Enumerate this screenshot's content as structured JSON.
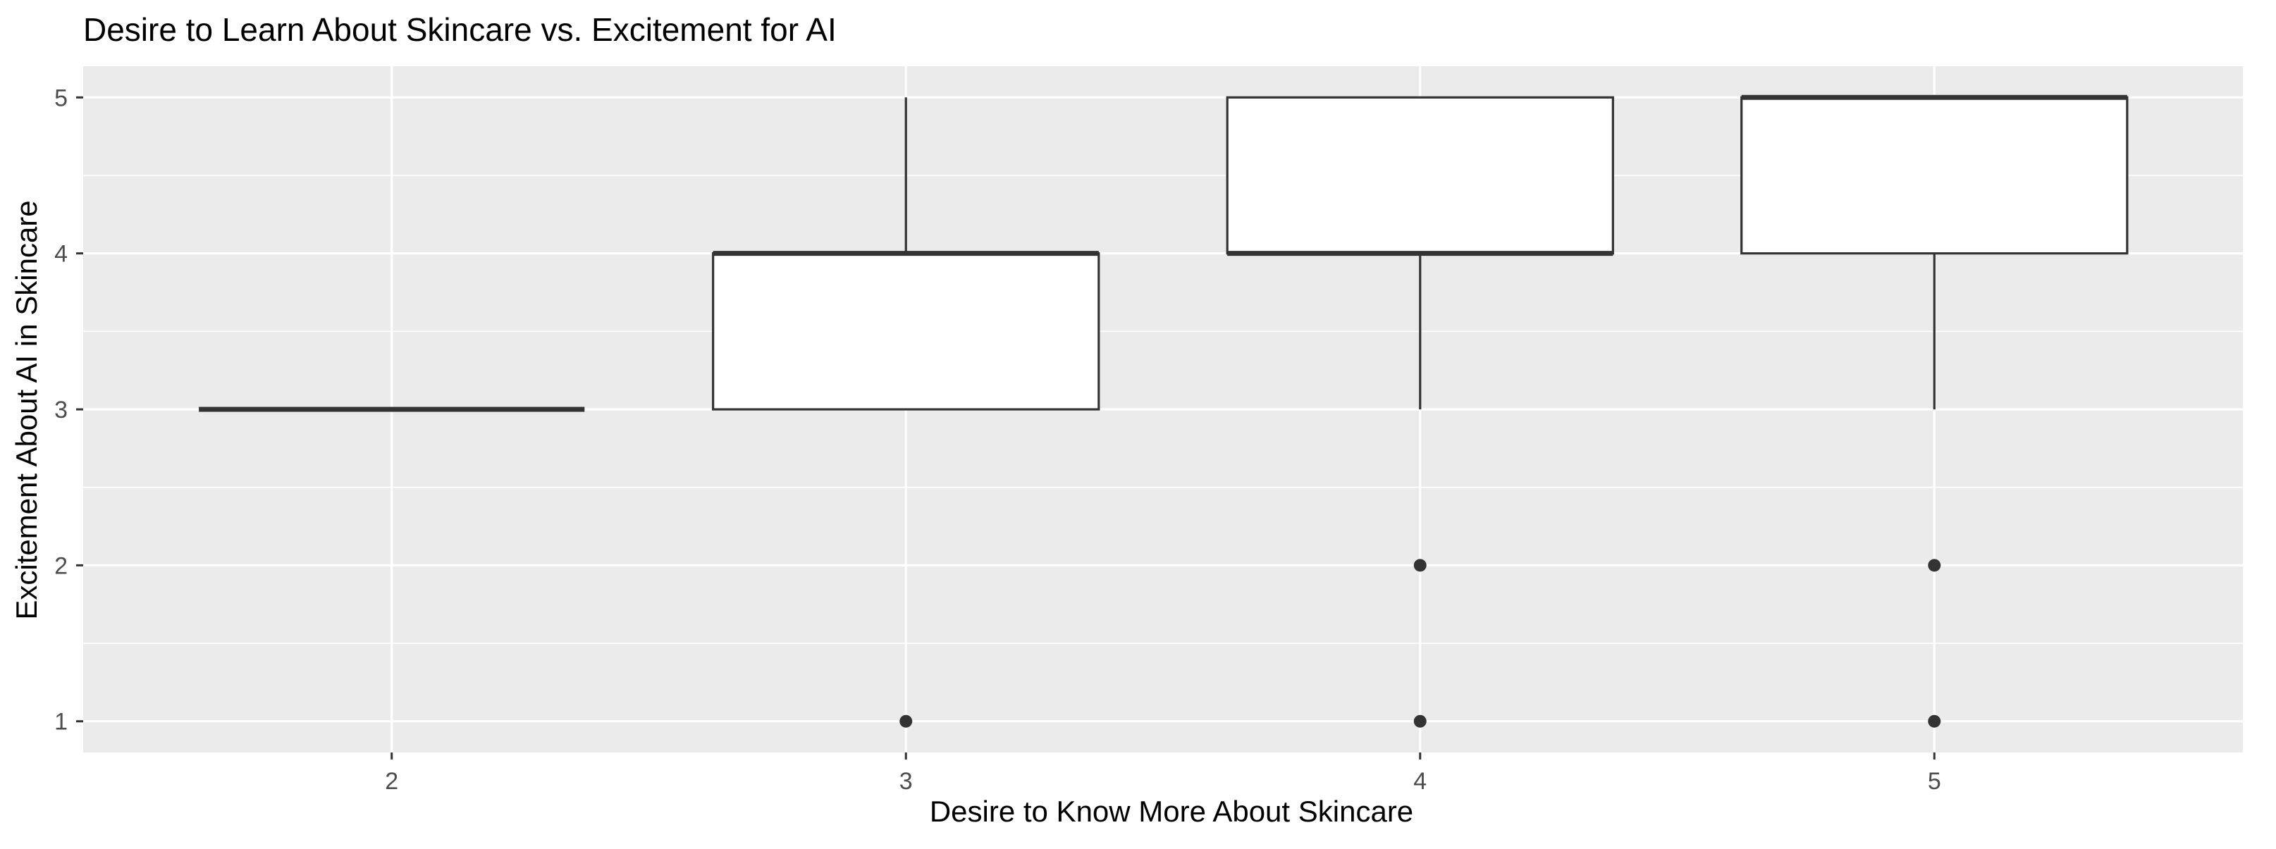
{
  "chart_data": {
    "type": "boxplot",
    "title": "Desire to Learn About Skincare vs. Excitement for AI",
    "xlabel": "Desire to Know More About Skincare",
    "ylabel": "Excitement About AI in Skincare",
    "categories": [
      "2",
      "3",
      "4",
      "5"
    ],
    "yticks": [
      1,
      2,
      3,
      4,
      5
    ],
    "ylim": [
      0.8,
      5.2
    ],
    "grid": true,
    "boxes": [
      {
        "category": "2",
        "min": 3,
        "q1": 3,
        "median": 3,
        "q3": 3,
        "max": 3,
        "outliers": []
      },
      {
        "category": "3",
        "min": 3,
        "q1": 3,
        "median": 4,
        "q3": 4,
        "max": 5,
        "outliers": [
          1
        ]
      },
      {
        "category": "4",
        "min": 3,
        "q1": 4,
        "median": 4,
        "q3": 5,
        "max": 5,
        "outliers": [
          1,
          2
        ]
      },
      {
        "category": "5",
        "min": 3,
        "q1": 4,
        "median": 5,
        "q3": 5,
        "max": 5,
        "outliers": [
          1,
          2
        ]
      }
    ],
    "colors": {
      "panel": "#ebebeb",
      "grid": "#ffffff",
      "box_fill": "#ffffff",
      "box_line": "#333333",
      "text": "#000000",
      "tick_text": "#4d4d4d"
    }
  }
}
